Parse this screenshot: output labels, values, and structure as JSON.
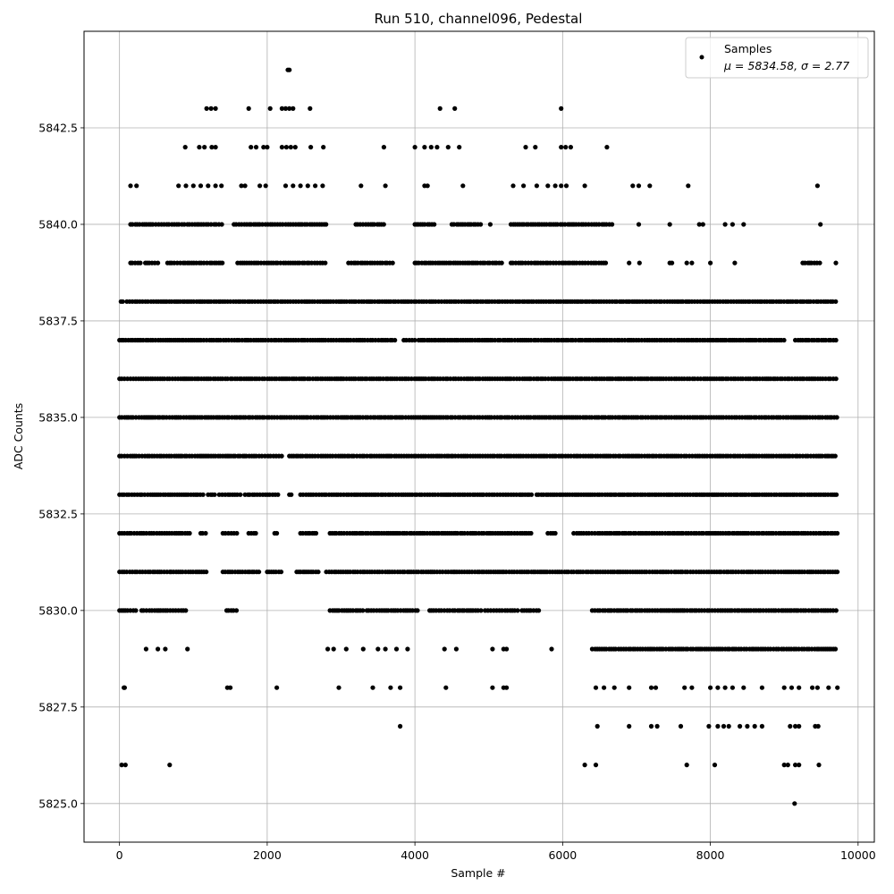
{
  "chart_data": {
    "type": "scatter",
    "title": "Run 510, channel096, Pedestal",
    "xlabel": "Sample #",
    "ylabel": "ADC Counts",
    "xlim": [
      -480,
      10220
    ],
    "ylim": [
      5824.0,
      5845.0
    ],
    "grid": true,
    "legend_placement": "top-right",
    "marker_color": "#000000",
    "xticks": [
      0,
      2000,
      4000,
      6000,
      8000,
      10000
    ],
    "xtick_labels": [
      "0",
      "2000",
      "4000",
      "6000",
      "8000",
      "10000"
    ],
    "yticks": [
      5825.0,
      5827.5,
      5830.0,
      5832.5,
      5835.0,
      5837.5,
      5840.0,
      5842.5
    ],
    "ytick_labels": [
      "5825.0",
      "5827.5",
      "5830.0",
      "5832.5",
      "5835.0",
      "5837.5",
      "5840.0",
      "5842.5"
    ],
    "series": [
      {
        "name": "Samples",
        "stats_label": "μ = 5834.58, σ = 2.77",
        "x_range": [
          0,
          9720
        ],
        "bands": [
          {
            "y": 5831,
            "segments": [
              [
                0,
                700
              ],
              [
                700,
                1200
              ],
              [
                1400,
                1900
              ],
              [
                2000,
                2200
              ],
              [
                2400,
                2700
              ],
              [
                2800,
                9720
              ]
            ]
          },
          {
            "y": 5832,
            "segments": [
              [
                0,
                950
              ],
              [
                1100,
                1200
              ],
              [
                1400,
                1600
              ],
              [
                1750,
                1850
              ],
              [
                2100,
                2150
              ],
              [
                2450,
                2700
              ],
              [
                2850,
                5600
              ],
              [
                5800,
                5900
              ],
              [
                6150,
                9720
              ]
            ]
          },
          {
            "y": 5833,
            "segments": [
              [
                0,
                1150
              ],
              [
                1200,
                1300
              ],
              [
                1350,
                1650
              ],
              [
                1700,
                2150
              ],
              [
                2300,
                2350
              ],
              [
                2450,
                5600
              ],
              [
                5650,
                9720
              ]
            ]
          },
          {
            "y": 5834,
            "segments": [
              [
                0,
                2200
              ],
              [
                2300,
                9720
              ]
            ]
          },
          {
            "y": 5835,
            "segments": [
              [
                0,
                9720
              ]
            ]
          },
          {
            "y": 5836,
            "segments": [
              [
                0,
                9720
              ]
            ]
          },
          {
            "y": 5837,
            "segments": [
              [
                0,
                3750
              ],
              [
                3850,
                4000
              ],
              [
                4050,
                9000
              ],
              [
                9150,
                9720
              ]
            ]
          },
          {
            "y": 5838,
            "segments": [
              [
                20,
                50
              ],
              [
                100,
                9720
              ]
            ]
          },
          {
            "y": 5830,
            "segments": [
              [
                0,
                250
              ],
              [
                300,
                900
              ],
              [
                1450,
                1600
              ],
              [
                2850,
                3300
              ],
              [
                3350,
                4050
              ],
              [
                4200,
                4900
              ],
              [
                4950,
                5400
              ],
              [
                5450,
                5700
              ],
              [
                6400,
                9720
              ]
            ]
          },
          {
            "y": 5839,
            "segments": [
              [
                150,
                300
              ],
              [
                350,
                550
              ],
              [
                650,
                1400
              ],
              [
                1600,
                2800
              ],
              [
                3100,
                3700
              ],
              [
                4000,
                5200
              ],
              [
                5300,
                6600
              ],
              [
                9250,
                9500
              ]
            ]
          },
          {
            "y": 5840,
            "segments": [
              [
                150,
                1400
              ],
              [
                1550,
                2800
              ],
              [
                3200,
                3600
              ],
              [
                4000,
                4300
              ],
              [
                4500,
                4900
              ],
              [
                5300,
                6700
              ]
            ]
          },
          {
            "y": 5829,
            "segments": [
              [
                6400,
                9720
              ]
            ]
          }
        ],
        "points": [
          [
            60,
            5828
          ],
          [
            30,
            5826
          ],
          [
            80,
            5826
          ],
          [
            680,
            5826
          ],
          [
            2280,
            5844
          ],
          [
            2300,
            5844
          ],
          [
            1180,
            5843
          ],
          [
            1240,
            5843
          ],
          [
            1300,
            5843
          ],
          [
            1750,
            5843
          ],
          [
            2040,
            5843
          ],
          [
            2200,
            5843
          ],
          [
            2250,
            5843
          ],
          [
            2300,
            5843
          ],
          [
            2350,
            5843
          ],
          [
            2580,
            5843
          ],
          [
            4340,
            5843
          ],
          [
            4540,
            5843
          ],
          [
            5980,
            5843
          ],
          [
            890,
            5842
          ],
          [
            1080,
            5842
          ],
          [
            1150,
            5842
          ],
          [
            1250,
            5842
          ],
          [
            1300,
            5842
          ],
          [
            1780,
            5842
          ],
          [
            1850,
            5842
          ],
          [
            1950,
            5842
          ],
          [
            2000,
            5842
          ],
          [
            2200,
            5842
          ],
          [
            2260,
            5842
          ],
          [
            2320,
            5842
          ],
          [
            2380,
            5842
          ],
          [
            2590,
            5842
          ],
          [
            2760,
            5842
          ],
          [
            3580,
            5842
          ],
          [
            4000,
            5842
          ],
          [
            4130,
            5842
          ],
          [
            4220,
            5842
          ],
          [
            4300,
            5842
          ],
          [
            4450,
            5842
          ],
          [
            4600,
            5842
          ],
          [
            5500,
            5842
          ],
          [
            5630,
            5842
          ],
          [
            5980,
            5842
          ],
          [
            6040,
            5842
          ],
          [
            6110,
            5842
          ],
          [
            6600,
            5842
          ],
          [
            150,
            5841
          ],
          [
            230,
            5841
          ],
          [
            800,
            5841
          ],
          [
            900,
            5841
          ],
          [
            1000,
            5841
          ],
          [
            1100,
            5841
          ],
          [
            1200,
            5841
          ],
          [
            1300,
            5841
          ],
          [
            1380,
            5841
          ],
          [
            1650,
            5841
          ],
          [
            1700,
            5841
          ],
          [
            1900,
            5841
          ],
          [
            1980,
            5841
          ],
          [
            2250,
            5841
          ],
          [
            2350,
            5841
          ],
          [
            2450,
            5841
          ],
          [
            2550,
            5841
          ],
          [
            2650,
            5841
          ],
          [
            2750,
            5841
          ],
          [
            3270,
            5841
          ],
          [
            3600,
            5841
          ],
          [
            4130,
            5841
          ],
          [
            4170,
            5841
          ],
          [
            4650,
            5841
          ],
          [
            5330,
            5841
          ],
          [
            5470,
            5841
          ],
          [
            5650,
            5841
          ],
          [
            5800,
            5841
          ],
          [
            5900,
            5841
          ],
          [
            5980,
            5841
          ],
          [
            6050,
            5841
          ],
          [
            6300,
            5841
          ],
          [
            6950,
            5841
          ],
          [
            7030,
            5841
          ],
          [
            7180,
            5841
          ],
          [
            7700,
            5841
          ],
          [
            9450,
            5841
          ],
          [
            5020,
            5840
          ],
          [
            7030,
            5840
          ],
          [
            7450,
            5840
          ],
          [
            7850,
            5840
          ],
          [
            7900,
            5840
          ],
          [
            8200,
            5840
          ],
          [
            8300,
            5840
          ],
          [
            8450,
            5840
          ],
          [
            9490,
            5840
          ],
          [
            6900,
            5839
          ],
          [
            7040,
            5839
          ],
          [
            7450,
            5839
          ],
          [
            7480,
            5839
          ],
          [
            7680,
            5839
          ],
          [
            7750,
            5839
          ],
          [
            8000,
            5839
          ],
          [
            8330,
            5839
          ],
          [
            9700,
            5839
          ],
          [
            360,
            5829
          ],
          [
            520,
            5829
          ],
          [
            620,
            5829
          ],
          [
            920,
            5829
          ],
          [
            2820,
            5829
          ],
          [
            2900,
            5829
          ],
          [
            3070,
            5829
          ],
          [
            3300,
            5829
          ],
          [
            3500,
            5829
          ],
          [
            3600,
            5829
          ],
          [
            3750,
            5829
          ],
          [
            3900,
            5829
          ],
          [
            4400,
            5829
          ],
          [
            4560,
            5829
          ],
          [
            5050,
            5829
          ],
          [
            5200,
            5829
          ],
          [
            5240,
            5829
          ],
          [
            5850,
            5829
          ],
          [
            70,
            5828
          ],
          [
            1460,
            5828
          ],
          [
            1500,
            5828
          ],
          [
            2130,
            5828
          ],
          [
            2970,
            5828
          ],
          [
            3430,
            5828
          ],
          [
            3670,
            5828
          ],
          [
            3800,
            5828
          ],
          [
            4420,
            5828
          ],
          [
            5050,
            5828
          ],
          [
            5200,
            5828
          ],
          [
            5240,
            5828
          ],
          [
            6450,
            5828
          ],
          [
            6560,
            5828
          ],
          [
            6700,
            5828
          ],
          [
            6900,
            5828
          ],
          [
            7200,
            5828
          ],
          [
            7260,
            5828
          ],
          [
            7650,
            5828
          ],
          [
            7750,
            5828
          ],
          [
            8000,
            5828
          ],
          [
            8100,
            5828
          ],
          [
            8200,
            5828
          ],
          [
            8300,
            5828
          ],
          [
            8450,
            5828
          ],
          [
            8700,
            5828
          ],
          [
            9000,
            5828
          ],
          [
            9100,
            5828
          ],
          [
            9200,
            5828
          ],
          [
            9380,
            5828
          ],
          [
            9450,
            5828
          ],
          [
            9600,
            5828
          ],
          [
            9720,
            5828
          ],
          [
            3800,
            5827
          ],
          [
            6470,
            5827
          ],
          [
            6900,
            5827
          ],
          [
            7200,
            5827
          ],
          [
            7280,
            5827
          ],
          [
            7600,
            5827
          ],
          [
            7980,
            5827
          ],
          [
            8100,
            5827
          ],
          [
            8180,
            5827
          ],
          [
            8250,
            5827
          ],
          [
            8400,
            5827
          ],
          [
            8500,
            5827
          ],
          [
            8600,
            5827
          ],
          [
            8700,
            5827
          ],
          [
            9080,
            5827
          ],
          [
            9150,
            5827
          ],
          [
            9200,
            5827
          ],
          [
            9420,
            5827
          ],
          [
            9460,
            5827
          ],
          [
            6300,
            5826
          ],
          [
            6450,
            5826
          ],
          [
            7680,
            5826
          ],
          [
            8060,
            5826
          ],
          [
            9000,
            5826
          ],
          [
            9050,
            5826
          ],
          [
            9150,
            5826
          ],
          [
            9200,
            5826
          ],
          [
            9470,
            5826
          ],
          [
            9140,
            5825
          ]
        ]
      }
    ]
  }
}
